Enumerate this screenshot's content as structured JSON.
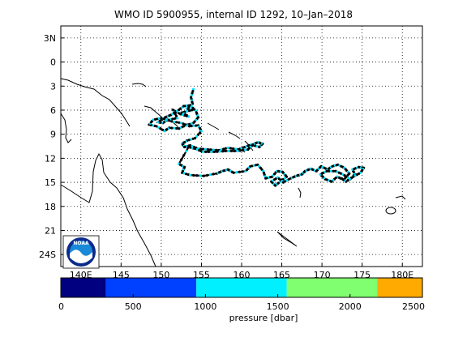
{
  "title": "WMO ID 5900955, internal ID 1292, 10–Jan–2018",
  "map": {
    "lon_range": [
      137.5,
      182.5
    ],
    "lat_range": [
      -4.5,
      25.5
    ],
    "lat_ticks": [
      {
        "value": -3,
        "label": "3N"
      },
      {
        "value": 0,
        "label": "0"
      },
      {
        "value": 3,
        "label": "3"
      },
      {
        "value": 6,
        "label": "6"
      },
      {
        "value": 9,
        "label": "9"
      },
      {
        "value": 12,
        "label": "12"
      },
      {
        "value": 15,
        "label": "15"
      },
      {
        "value": 18,
        "label": "18"
      },
      {
        "value": 21,
        "label": "21"
      },
      {
        "value": 24,
        "label": "24S"
      }
    ],
    "lon_ticks": [
      {
        "value": 140,
        "label": "140E"
      },
      {
        "value": 145,
        "label": "145"
      },
      {
        "value": 150,
        "label": "150"
      },
      {
        "value": 155,
        "label": "155"
      },
      {
        "value": 160,
        "label": "160"
      },
      {
        "value": 165,
        "label": "165"
      },
      {
        "value": 170,
        "label": "170"
      },
      {
        "value": 175,
        "label": "175"
      },
      {
        "value": 180,
        "label": "180E"
      }
    ],
    "grid": "dotted"
  },
  "logo": {
    "text": "NOAA"
  },
  "colorbar": {
    "label": "pressure [dbar]",
    "range": [
      0,
      2500
    ],
    "tick_labels": [
      "0",
      "500",
      "1000",
      "1500",
      "2000",
      "2500"
    ],
    "tick_values": [
      0,
      500,
      1000,
      1500,
      2000,
      2500
    ],
    "bands": [
      {
        "from": 0,
        "to": 312,
        "color": "#000080"
      },
      {
        "from": 312,
        "to": 937,
        "color": "#0040ff"
      },
      {
        "from": 937,
        "to": 1562,
        "color": "#00f0ff"
      },
      {
        "from": 1562,
        "to": 2187,
        "color": "#80ff70"
      },
      {
        "from": 2187,
        "to": 2500,
        "color": "#ffaa00"
      }
    ]
  },
  "track": {
    "marker_colors": [
      "#000000",
      "#00e0ff"
    ],
    "points": [
      [
        154.0,
        3.4
      ],
      [
        153.7,
        4.4
      ],
      [
        153.9,
        5.2
      ],
      [
        153.2,
        5.8
      ],
      [
        153.8,
        6.0
      ],
      [
        152.6,
        6.3
      ],
      [
        153.4,
        6.8
      ],
      [
        152.4,
        6.5
      ],
      [
        151.5,
        6.0
      ],
      [
        152.0,
        7.0
      ],
      [
        150.8,
        7.2
      ],
      [
        150.2,
        7.6
      ],
      [
        149.6,
        7.5
      ],
      [
        150.5,
        6.9
      ],
      [
        151.2,
        6.6
      ],
      [
        152.0,
        6.1
      ],
      [
        152.8,
        5.5
      ],
      [
        153.6,
        5.4
      ],
      [
        154.3,
        6.1
      ],
      [
        154.6,
        6.9
      ],
      [
        154.0,
        7.6
      ],
      [
        153.0,
        7.9
      ],
      [
        152.2,
        8.3
      ],
      [
        151.0,
        8.2
      ],
      [
        150.4,
        8.6
      ],
      [
        149.4,
        8.0
      ],
      [
        148.5,
        7.8
      ],
      [
        149.0,
        7.2
      ],
      [
        150.0,
        7.0
      ],
      [
        151.3,
        7.4
      ],
      [
        152.5,
        7.6
      ],
      [
        153.5,
        8.0
      ],
      [
        154.6,
        7.9
      ],
      [
        155.0,
        8.6
      ],
      [
        154.2,
        9.5
      ],
      [
        153.2,
        9.8
      ],
      [
        152.6,
        10.2
      ],
      [
        152.9,
        10.6
      ],
      [
        153.6,
        10.4
      ],
      [
        154.6,
        10.8
      ],
      [
        155.8,
        10.9
      ],
      [
        157.2,
        11.0
      ],
      [
        158.3,
        10.7
      ],
      [
        159.6,
        10.9
      ],
      [
        160.4,
        10.6
      ],
      [
        161.2,
        10.3
      ],
      [
        162.2,
        10.6
      ],
      [
        162.6,
        10.2
      ],
      [
        162.0,
        10.0
      ],
      [
        161.4,
        10.3
      ],
      [
        160.8,
        10.9
      ],
      [
        159.5,
        11.1
      ],
      [
        158.0,
        11.1
      ],
      [
        156.6,
        11.2
      ],
      [
        155.2,
        11.2
      ],
      [
        154.2,
        10.8
      ],
      [
        153.4,
        10.6
      ],
      [
        152.2,
        12.7
      ],
      [
        152.9,
        13.1
      ],
      [
        152.6,
        13.8
      ],
      [
        153.6,
        14.1
      ],
      [
        155.3,
        14.2
      ],
      [
        156.9,
        13.9
      ],
      [
        157.6,
        13.6
      ],
      [
        158.3,
        13.4
      ],
      [
        159.0,
        13.8
      ],
      [
        160.5,
        13.6
      ],
      [
        161.1,
        13.0
      ],
      [
        162.0,
        12.8
      ],
      [
        162.7,
        13.6
      ],
      [
        163.0,
        14.5
      ],
      [
        163.8,
        14.3
      ],
      [
        164.4,
        13.6
      ],
      [
        165.1,
        13.7
      ],
      [
        165.6,
        14.3
      ],
      [
        164.7,
        15.0
      ],
      [
        164.2,
        15.4
      ],
      [
        163.7,
        14.9
      ],
      [
        164.5,
        14.4
      ],
      [
        165.2,
        15.0
      ],
      [
        166.1,
        14.5
      ],
      [
        166.8,
        14.2
      ],
      [
        167.5,
        14.0
      ],
      [
        167.9,
        13.6
      ],
      [
        168.6,
        13.3
      ],
      [
        169.3,
        13.6
      ],
      [
        169.9,
        13.0
      ],
      [
        170.7,
        13.4
      ],
      [
        171.3,
        13.0
      ],
      [
        172.0,
        12.8
      ],
      [
        172.8,
        13.2
      ],
      [
        173.4,
        13.9
      ],
      [
        172.7,
        14.7
      ],
      [
        171.9,
        14.3
      ],
      [
        171.2,
        14.9
      ],
      [
        170.4,
        14.6
      ],
      [
        169.8,
        14.0
      ],
      [
        170.6,
        13.6
      ],
      [
        171.7,
        13.6
      ],
      [
        172.6,
        14.0
      ],
      [
        173.5,
        14.6
      ],
      [
        174.1,
        14.0
      ],
      [
        173.8,
        13.4
      ],
      [
        174.6,
        13.1
      ],
      [
        175.2,
        13.2
      ],
      [
        174.8,
        13.8
      ],
      [
        173.9,
        14.3
      ],
      [
        173.0,
        14.9
      ],
      [
        172.3,
        14.4
      ]
    ]
  }
}
